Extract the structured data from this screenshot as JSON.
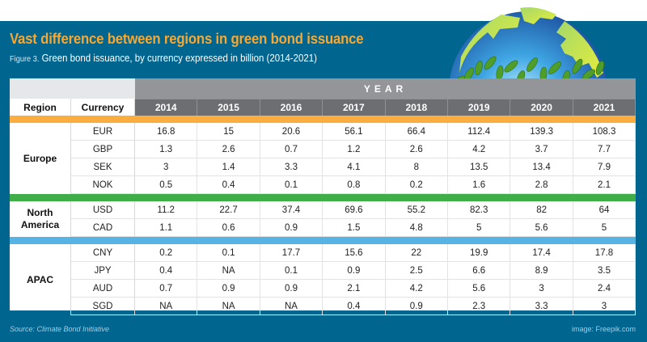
{
  "header": {
    "title": "Vast difference between regions in green bond issuance",
    "figure_label": "Figure 3.",
    "subtitle": "Green bond issuance, by currency expressed in billion (2014-2021)"
  },
  "footer": {
    "source": "Source: Climate Bond Initiative",
    "credit": "image: Freepik.com"
  },
  "colors": {
    "panel_bg": "#00658f",
    "title": "#f7a833",
    "europe_band": "#f9ae3f",
    "north_america_band": "#3fae49",
    "apac_band": "#55b4e4",
    "header_dark": "#6d6e71",
    "header_mid": "#939598"
  },
  "chart_data": {
    "type": "table",
    "title": "Vast difference between regions in green bond issuance",
    "subtitle": "Figure 3. Green bond issuance, by currency expressed in billion (2014-2021)",
    "group_header": "YEAR",
    "columns": [
      "Region",
      "Currency",
      "2014",
      "2015",
      "2016",
      "2017",
      "2018",
      "2019",
      "2020",
      "2021"
    ],
    "years": [
      "2014",
      "2015",
      "2016",
      "2017",
      "2018",
      "2019",
      "2020",
      "2021"
    ],
    "regions": [
      {
        "name": "Europe",
        "rows": [
          {
            "currency": "EUR",
            "values": [
              "16.8",
              "15",
              "20.6",
              "56.1",
              "66.4",
              "112.4",
              "139.3",
              "108.3"
            ]
          },
          {
            "currency": "GBP",
            "values": [
              "1.3",
              "2.6",
              "0.7",
              "1.2",
              "2.6",
              "4.2",
              "3.7",
              "7.7"
            ]
          },
          {
            "currency": "SEK",
            "values": [
              "3",
              "1.4",
              "3.3",
              "4.1",
              "8",
              "13.5",
              "13.4",
              "7.9"
            ]
          },
          {
            "currency": "NOK",
            "values": [
              "0.5",
              "0.4",
              "0.1",
              "0.8",
              "0.2",
              "1.6",
              "2.8",
              "2.1"
            ]
          }
        ]
      },
      {
        "name": "North America",
        "rows": [
          {
            "currency": "USD",
            "values": [
              "11.2",
              "22.7",
              "37.4",
              "69.6",
              "55.2",
              "82.3",
              "82",
              "64"
            ]
          },
          {
            "currency": "CAD",
            "values": [
              "1.1",
              "0.6",
              "0.9",
              "1.5",
              "4.8",
              "5",
              "5.6",
              "5"
            ]
          }
        ]
      },
      {
        "name": "APAC",
        "rows": [
          {
            "currency": "CNY",
            "values": [
              "0.2",
              "0.1",
              "17.7",
              "15.6",
              "22",
              "19.9",
              "17.4",
              "17.8"
            ]
          },
          {
            "currency": "JPY",
            "values": [
              "0.4",
              "NA",
              "0.1",
              "0.9",
              "2.5",
              "6.6",
              "8.9",
              "3.5"
            ]
          },
          {
            "currency": "AUD",
            "values": [
              "0.7",
              "0.9",
              "0.9",
              "2.1",
              "4.2",
              "5.6",
              "3",
              "2.4"
            ]
          },
          {
            "currency": "SGD",
            "values": [
              "NA",
              "NA",
              "NA",
              "0.4",
              "0.9",
              "2.3",
              "3.3",
              "3"
            ]
          }
        ]
      }
    ]
  }
}
